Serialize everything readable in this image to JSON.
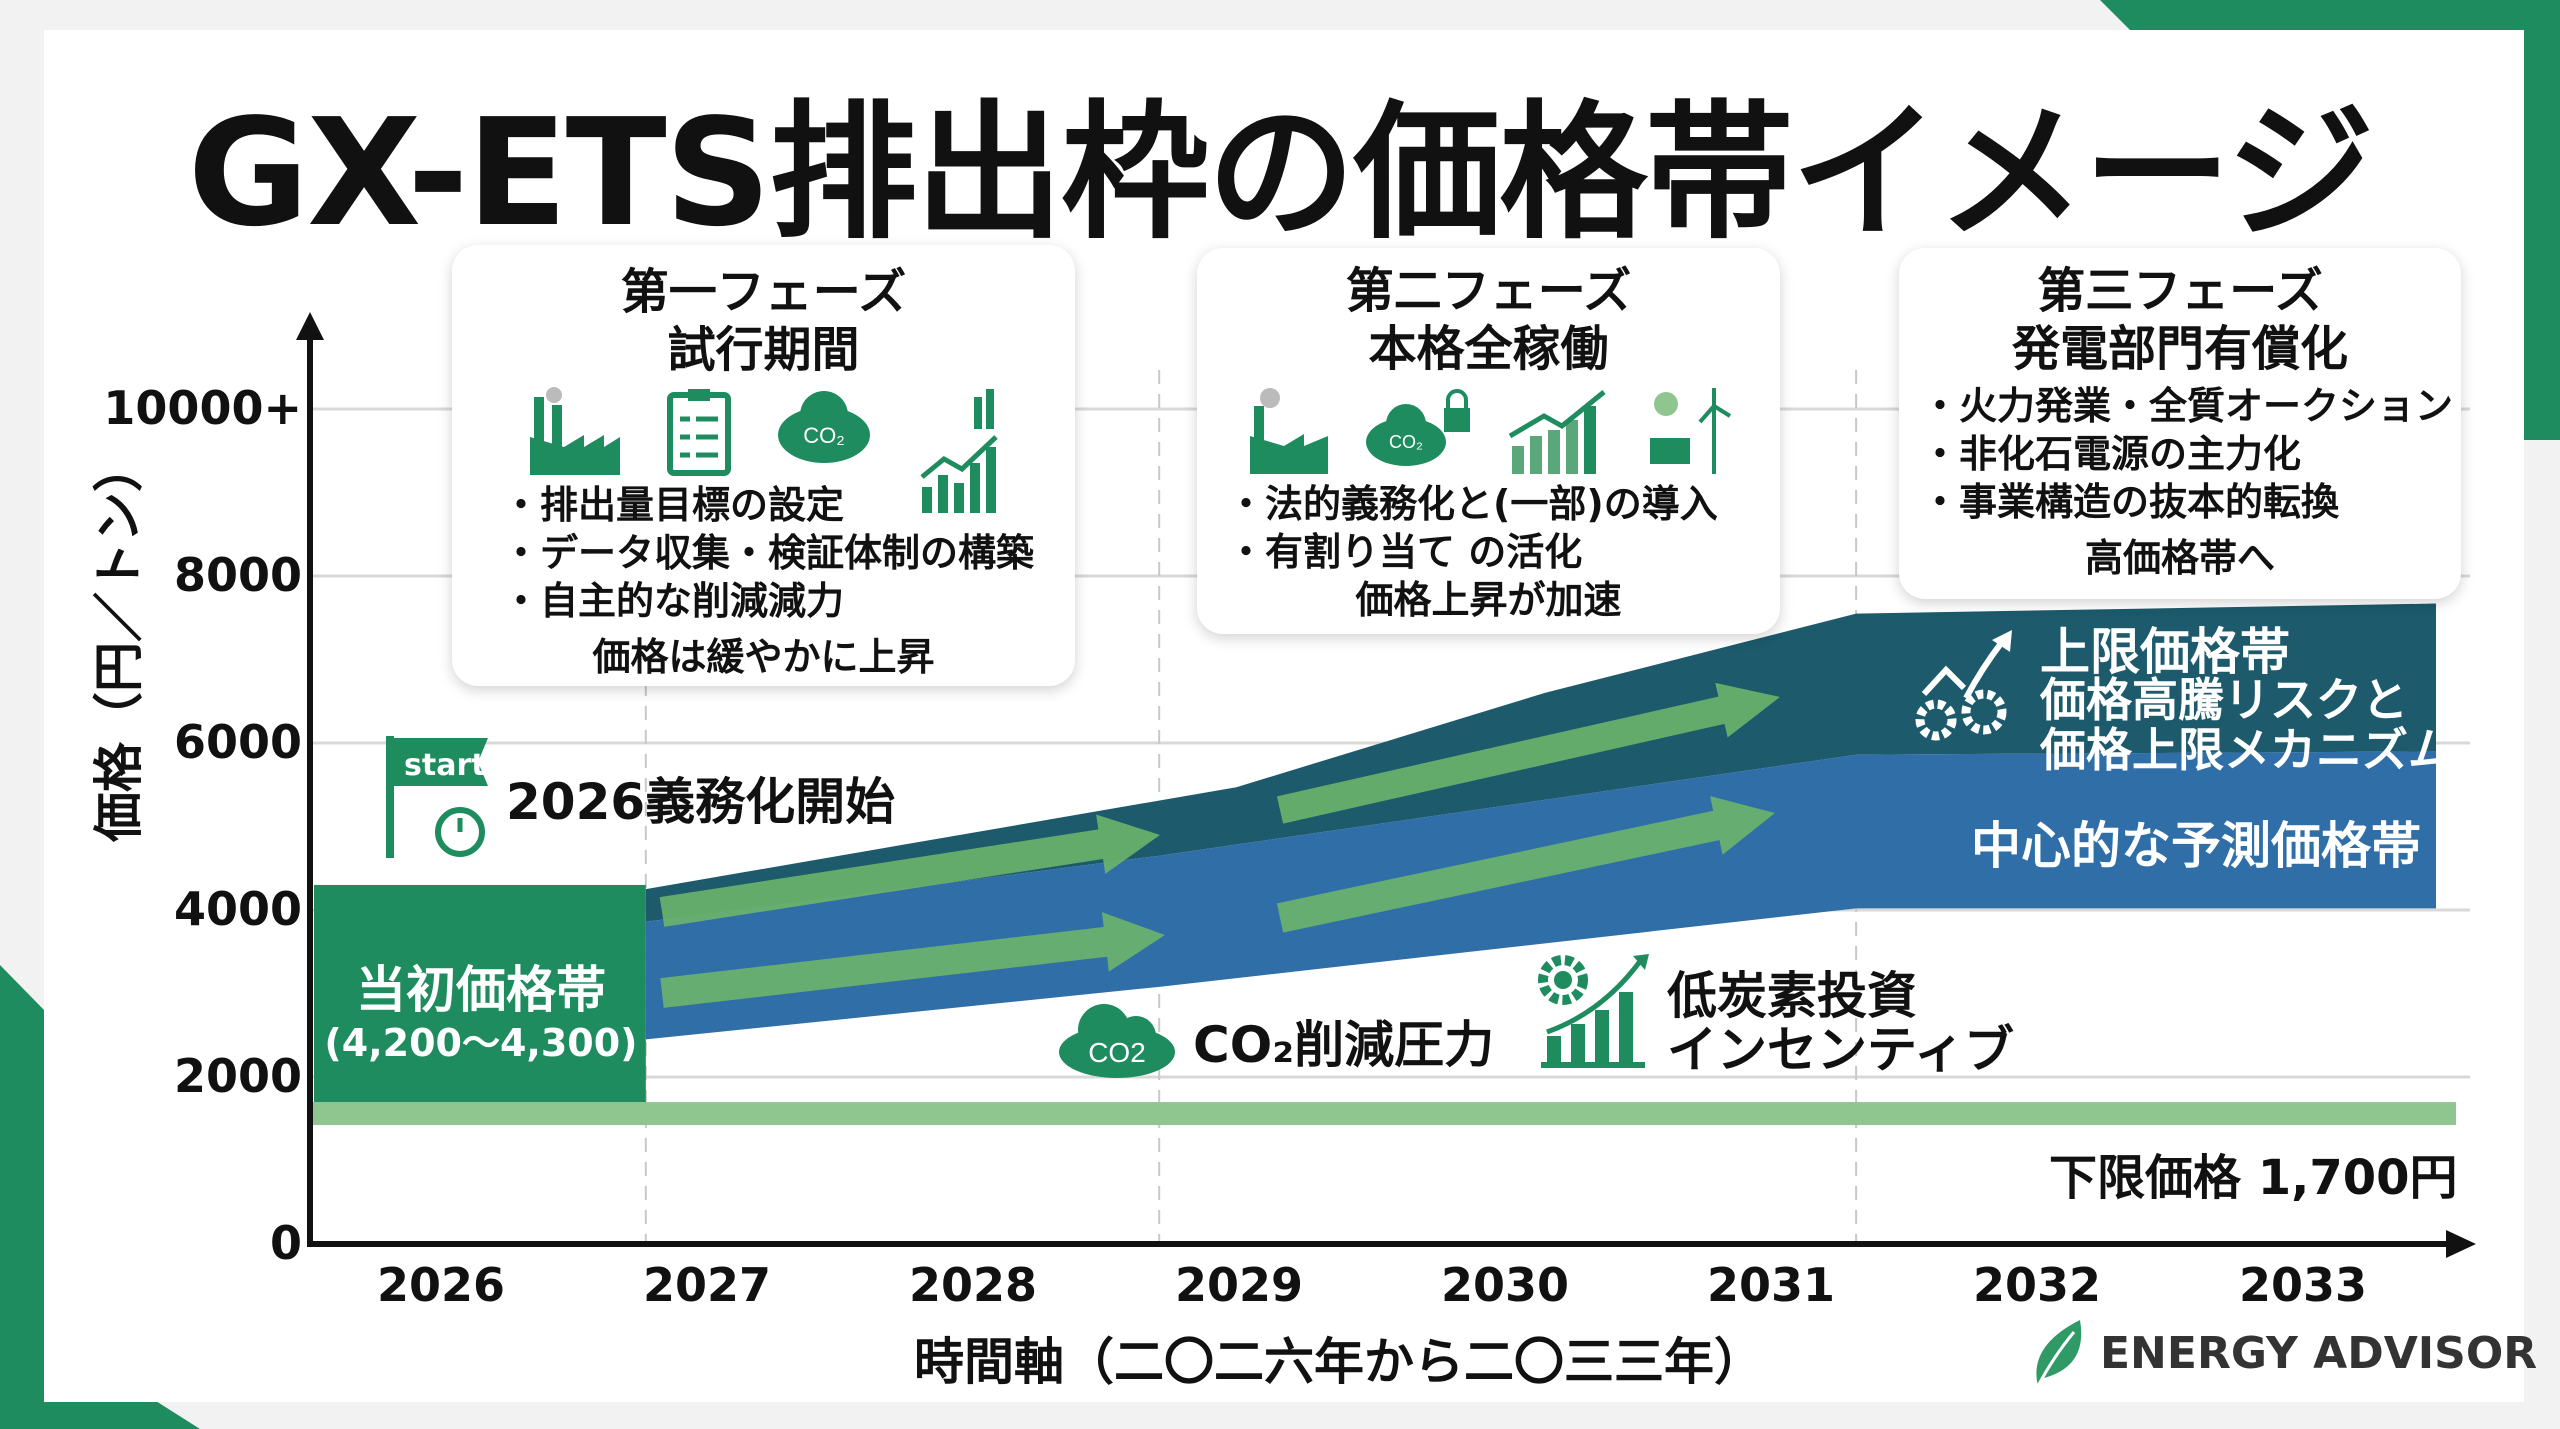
{
  "title": "GX-ETS排出枠の価格帯イメージ",
  "phases": [
    {
      "label": "第一フェーズ",
      "name": "試行期間",
      "bullets": [
        "・排出量目標の設定",
        "・データ収集・検証体制の構築",
        "・自主的な削減減力"
      ],
      "footer": "価格は緩やかに上昇"
    },
    {
      "label": "第二フェーズ",
      "name": "本格全稼働",
      "bullets": [
        "・法的義務化と(一部)の導入",
        "・有割り当て の活化"
      ],
      "footer": "価格上昇が加速"
    },
    {
      "label": "第三フェーズ",
      "name": "発電部門有償化",
      "bullets": [
        "・火力発業・全質オークション",
        "・非化石電源の主力化",
        "・事業構造の抜本的転換"
      ],
      "footer": "高価格帯へ"
    }
  ],
  "annotations": {
    "start_flag": "start",
    "start_label": "2026義務化開始",
    "initial_band_title": "当初価格帯",
    "initial_band_range": "(4,200〜4,300)",
    "co2_icon": "CO2",
    "co2_pressure": "CO₂削減圧力",
    "low_carbon_1": "低炭素投資",
    "low_carbon_2": "インセンティブ",
    "upper_band_1": "上限価格帯",
    "upper_band_2": "価格高騰リスクと",
    "upper_band_3": "価格上限メカニズム",
    "central_band": "中心的な予測価格帯",
    "floor_label": "下限価格 1,700円"
  },
  "brand": "ENERGY ADVISOR",
  "colors": {
    "green": "#1e8c5e",
    "light_green": "#8fc68f",
    "arrow": "#6cb46a",
    "blue": "#2f6ea6",
    "teal": "#1c5a6c"
  },
  "chart_data": {
    "type": "area",
    "title": "GX-ETS排出枠の価格帯イメージ",
    "xlabel": "時間軸（二〇二六年から二〇三三年）",
    "ylabel": "価格（円／トン）",
    "x_ticks": [
      "2026",
      "2027",
      "2028",
      "2029",
      "2030",
      "2031",
      "2032",
      "2033"
    ],
    "y_ticks": [
      "0",
      "2000",
      "4000",
      "6000",
      "8000",
      "10000+"
    ],
    "y_tick_values": [
      0,
      2000,
      4000,
      6000,
      8000,
      10000
    ],
    "ylim": [
      0,
      10000
    ],
    "xlim": [
      2025.5,
      2033.5
    ],
    "grid": true,
    "initial_band": {
      "x": [
        2025.55,
        2026.77
      ],
      "low": 1700,
      "high": 4300,
      "range_label": [
        4200,
        4300
      ]
    },
    "floor_price": 1700,
    "series": [
      {
        "name": "中心的な予測価格帯 (下限)",
        "x": [
          2026.77,
          2028.7,
          2031.32,
          2033.5
        ],
        "values": [
          2450,
          3080,
          4020,
          4020
        ]
      },
      {
        "name": "中心的な予測価格帯 (上限)",
        "x": [
          2026.77,
          2028.7,
          2031.32,
          2033.5
        ],
        "values": [
          3860,
          4650,
          5860,
          5900
        ]
      },
      {
        "name": "上限価格帯",
        "x": [
          2026.77,
          2028.99,
          2030.15,
          2031.32,
          2033.5
        ],
        "values": [
          4250,
          5470,
          6600,
          7550,
          7670
        ]
      }
    ],
    "phase_dividers": [
      2026.77,
      2028.7,
      2031.32
    ]
  }
}
